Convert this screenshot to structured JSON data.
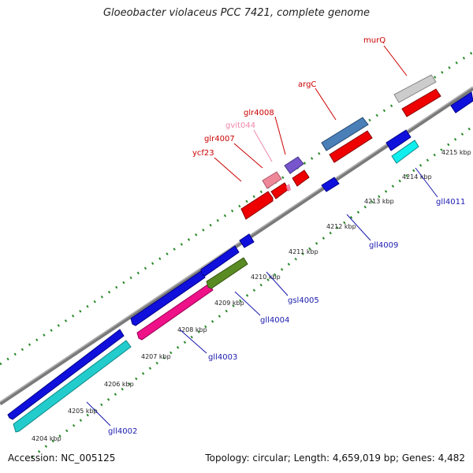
{
  "title": "Gloeobacter violaceus PCC 7421, complete genome",
  "footer": {
    "accession": "Accession: NC_005125",
    "summary": "Topology: circular; Length: 4,659,019 bp; Genes: 4,482"
  },
  "colors": {
    "backbone": "#8c8c8c",
    "tick_green": "#2a8a2a",
    "forward_label": "#cc0000",
    "reverse_label": "#1a1ab0",
    "pseudo_label": "#ee88aa"
  },
  "ticks": [
    "4204 kbp",
    "4205 kbp",
    "4206 kbp",
    "4207 kbp",
    "4208 kbp",
    "4209 kbp",
    "4210 kbp",
    "4211 kbp",
    "4212 kbp",
    "4213 kbp",
    "4214 kbp",
    "4215 kbp"
  ],
  "gene_labels": {
    "ycf23": "ycf23",
    "glr4007": "glr4007",
    "gvit044": "gvit044",
    "glr4008": "glr4008",
    "argC": "argC",
    "murQ": "murQ",
    "gll4002": "gll4002",
    "gll4003": "gll4003",
    "gll4004": "gll4004",
    "gsl4005": "gsl4005",
    "gll4009": "gll4009",
    "gll4011": "gll4011"
  }
}
